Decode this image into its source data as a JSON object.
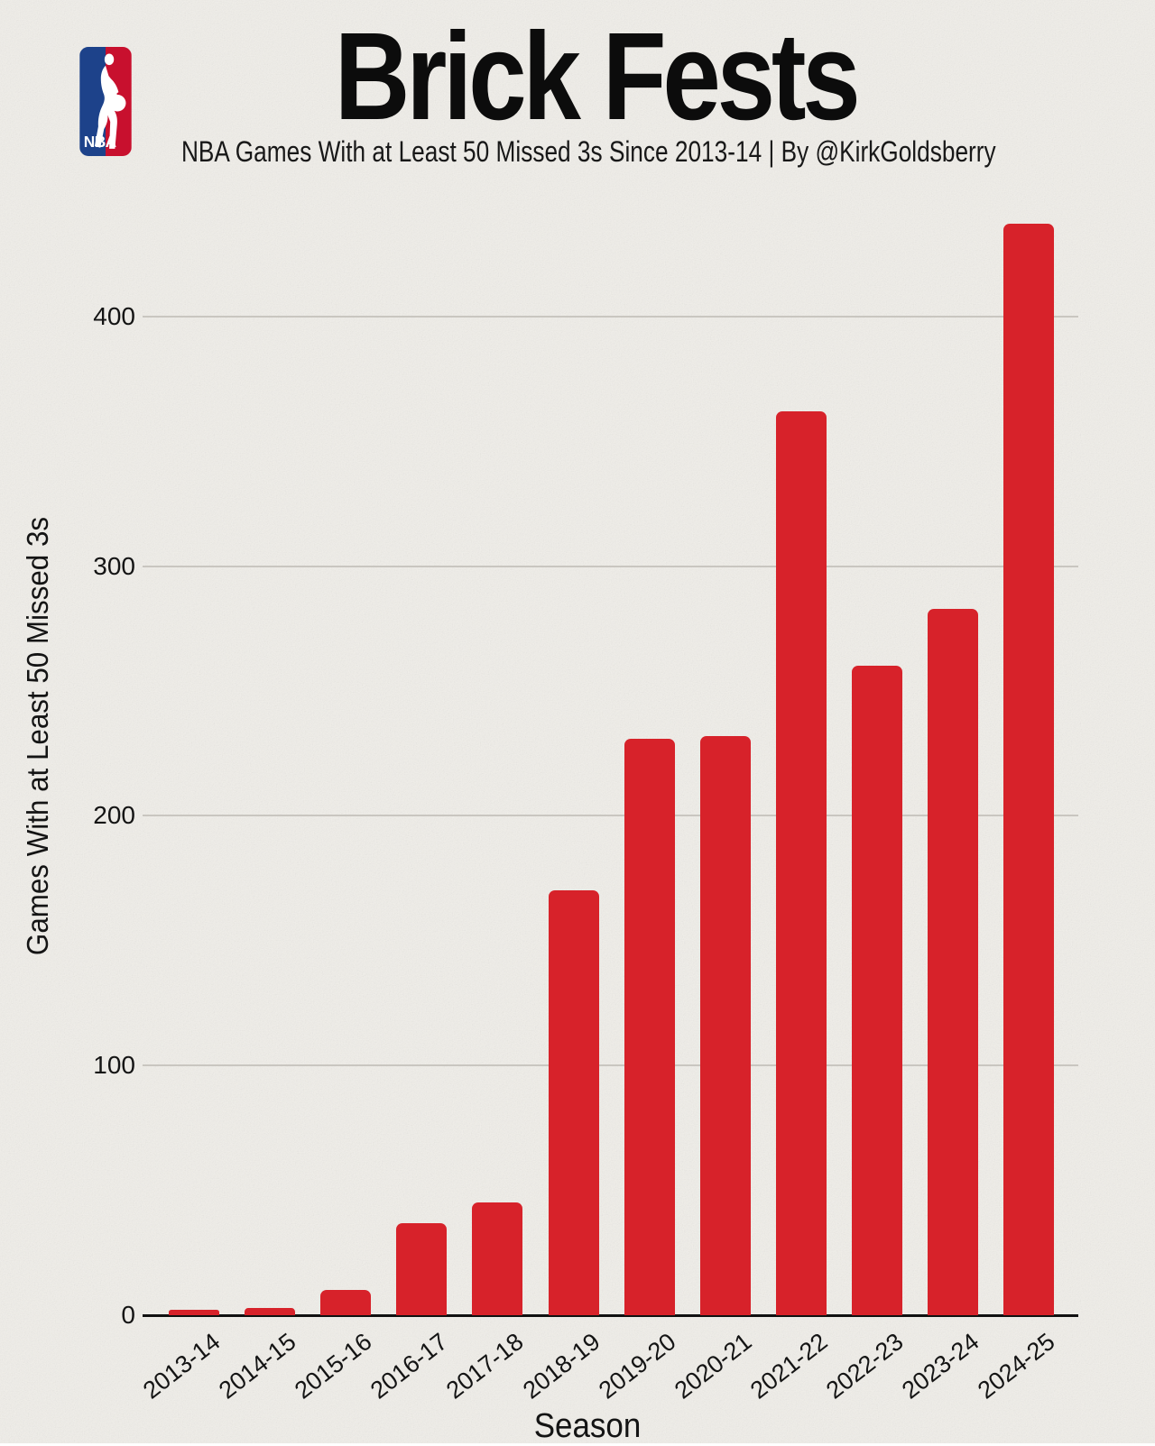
{
  "logo": {
    "label": "NBA"
  },
  "header": {
    "title": "Brick Fests",
    "subtitle": "NBA Games With at Least 50 Missed 3s Since 2013-14 | By @KirkGoldsberry"
  },
  "chart_data": {
    "type": "bar",
    "title": "Brick Fests",
    "subtitle": "NBA Games With at Least 50 Missed 3s Since 2013-14 | By @KirkGoldsberry",
    "xlabel": "Season",
    "ylabel": "Games With at Least 50 Missed 3s",
    "categories": [
      "2013-14",
      "2014-15",
      "2015-16",
      "2016-17",
      "2017-18",
      "2018-19",
      "2019-20",
      "2020-21",
      "2021-22",
      "2022-23",
      "2023-24",
      "2024-25"
    ],
    "values": [
      2,
      3,
      10,
      37,
      45,
      170,
      231,
      232,
      362,
      260,
      283,
      437
    ],
    "yticks": [
      0,
      100,
      200,
      300,
      400
    ],
    "ylim": [
      0,
      450
    ],
    "grid": "horizontal",
    "legend": "none",
    "bar_color": "#d7222a",
    "grid_color": "#c9c6c0",
    "axis_color": "#111111",
    "text_color": "#141414",
    "background_color": "#f0eee9",
    "logo_colors": {
      "blue": "#1d428a",
      "red": "#c8102e"
    }
  }
}
